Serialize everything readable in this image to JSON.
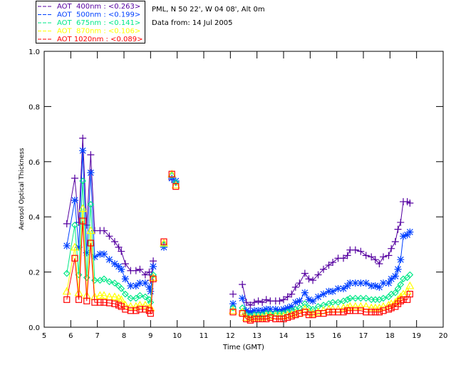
{
  "header": {
    "site": "PML, N 50 22', W 04 08', Alt 0m",
    "date": "Data from: 14 Jul 2005"
  },
  "chart_data": {
    "type": "line",
    "xlabel": "Time (GMT)",
    "ylabel": "Aerosol Optical Thickness",
    "xlim": [
      5,
      20
    ],
    "ylim": [
      0,
      1.0
    ],
    "xticks": [
      "5",
      "6",
      "7",
      "8",
      "9",
      "10",
      "11",
      "12",
      "13",
      "14",
      "15",
      "16",
      "17",
      "18",
      "19",
      "20"
    ],
    "yticks": [
      "0.0",
      "0.2",
      "0.4",
      "0.6",
      "0.8",
      "1.0"
    ],
    "legend_position": "top-left-outside",
    "segments_x": [
      [
        5.85,
        6.15,
        6.3,
        6.45,
        6.6,
        6.75,
        6.9,
        7.1,
        7.25,
        7.45,
        7.65,
        7.8,
        7.9,
        8.05,
        8.25,
        8.45,
        8.6,
        8.8,
        8.95,
        9.0,
        9.1
      ],
      [
        9.5
      ],
      [
        9.8
      ],
      [
        9.95
      ],
      [
        12.1
      ],
      [
        12.45,
        12.6,
        12.75,
        12.9,
        13.05,
        13.2,
        13.35,
        13.5,
        13.7,
        13.85,
        14.0,
        14.15,
        14.3,
        14.45,
        14.6,
        14.8,
        14.95,
        15.1,
        15.3,
        15.5,
        15.7,
        15.85,
        16.05,
        16.25,
        16.4,
        16.5,
        16.7,
        16.9,
        17.1,
        17.3,
        17.45,
        17.6,
        17.75,
        17.95,
        18.05,
        18.2,
        18.3,
        18.4,
        18.5,
        18.65,
        18.75
      ]
    ],
    "series": [
      {
        "name": "AOT  400nm : <0.263>",
        "color": "#5500a0",
        "marker": "plus",
        "segments": [
          [
            0.375,
            0.54,
            0.38,
            0.685,
            0.37,
            0.625,
            0.35,
            0.35,
            0.35,
            0.33,
            0.31,
            0.29,
            0.275,
            0.23,
            0.205,
            0.205,
            0.21,
            0.19,
            0.2,
            0.17,
            0.24
          ],
          [
            0.295
          ],
          [
            0.535
          ],
          [
            0.525
          ],
          [
            0.12
          ],
          [
            0.155,
            0.09,
            0.08,
            0.09,
            0.095,
            0.09,
            0.1,
            0.095,
            0.095,
            0.095,
            0.1,
            0.11,
            0.12,
            0.145,
            0.16,
            0.195,
            0.175,
            0.17,
            0.19,
            0.21,
            0.225,
            0.235,
            0.25,
            0.25,
            0.26,
            0.28,
            0.28,
            0.275,
            0.26,
            0.255,
            0.245,
            0.23,
            0.255,
            0.26,
            0.285,
            0.31,
            0.355,
            0.38,
            0.455,
            0.455,
            0.45
          ]
        ]
      },
      {
        "name": "AOT  500nm : <0.199>",
        "color": "#0040ff",
        "marker": "asterisk",
        "segments": [
          [
            0.295,
            0.46,
            0.29,
            0.64,
            0.27,
            0.56,
            0.255,
            0.265,
            0.265,
            0.245,
            0.23,
            0.22,
            0.21,
            0.175,
            0.15,
            0.15,
            0.16,
            0.16,
            0.145,
            0.13,
            0.22
          ],
          [
            0.29
          ],
          [
            0.54
          ],
          [
            0.53
          ],
          [
            0.085
          ],
          [
            0.105,
            0.06,
            0.055,
            0.06,
            0.06,
            0.06,
            0.065,
            0.065,
            0.065,
            0.06,
            0.065,
            0.07,
            0.075,
            0.09,
            0.095,
            0.125,
            0.1,
            0.095,
            0.11,
            0.12,
            0.13,
            0.13,
            0.14,
            0.14,
            0.15,
            0.16,
            0.16,
            0.16,
            0.16,
            0.15,
            0.15,
            0.145,
            0.16,
            0.16,
            0.175,
            0.185,
            0.21,
            0.245,
            0.33,
            0.335,
            0.345
          ]
        ]
      },
      {
        "name": "AOT  675nm : <0.141>",
        "color": "#00e888",
        "marker": "diamond",
        "segments": [
          [
            0.195,
            0.37,
            0.19,
            0.53,
            0.18,
            0.445,
            0.17,
            0.17,
            0.175,
            0.165,
            0.16,
            0.15,
            0.14,
            0.12,
            0.105,
            0.105,
            0.115,
            0.11,
            0.1,
            0.09,
            0.19
          ],
          [
            0.3
          ],
          [
            0.55
          ],
          [
            0.525
          ],
          [
            0.07
          ],
          [
            0.07,
            0.045,
            0.04,
            0.045,
            0.045,
            0.045,
            0.05,
            0.05,
            0.05,
            0.05,
            0.05,
            0.055,
            0.06,
            0.065,
            0.07,
            0.085,
            0.07,
            0.065,
            0.075,
            0.08,
            0.085,
            0.09,
            0.09,
            0.095,
            0.1,
            0.105,
            0.105,
            0.105,
            0.105,
            0.1,
            0.1,
            0.1,
            0.105,
            0.11,
            0.12,
            0.125,
            0.14,
            0.155,
            0.175,
            0.18,
            0.19
          ]
        ]
      },
      {
        "name": "AOT  870nm : <0.106>",
        "color": "#ffff00",
        "marker": "triangle",
        "segments": [
          [
            0.13,
            0.29,
            0.125,
            0.43,
            0.115,
            0.35,
            0.11,
            0.115,
            0.115,
            0.11,
            0.11,
            0.105,
            0.1,
            0.08,
            0.075,
            0.075,
            0.08,
            0.08,
            0.07,
            0.07,
            0.18
          ],
          [
            0.305
          ],
          [
            0.555
          ],
          [
            0.515
          ],
          [
            0.06
          ],
          [
            0.055,
            0.035,
            0.03,
            0.035,
            0.035,
            0.035,
            0.04,
            0.04,
            0.04,
            0.04,
            0.04,
            0.045,
            0.045,
            0.05,
            0.05,
            0.065,
            0.055,
            0.05,
            0.055,
            0.06,
            0.065,
            0.065,
            0.065,
            0.07,
            0.07,
            0.075,
            0.075,
            0.075,
            0.075,
            0.07,
            0.07,
            0.07,
            0.075,
            0.08,
            0.085,
            0.09,
            0.1,
            0.11,
            0.12,
            0.13,
            0.15
          ]
        ]
      },
      {
        "name": "AOT 1020nm : <0.089>",
        "color": "#ff0000",
        "marker": "square",
        "segments": [
          [
            0.1,
            0.25,
            0.1,
            0.385,
            0.095,
            0.305,
            0.09,
            0.09,
            0.09,
            0.088,
            0.085,
            0.08,
            0.075,
            0.065,
            0.06,
            0.06,
            0.065,
            0.065,
            0.06,
            0.05,
            0.175
          ],
          [
            0.31
          ],
          [
            0.555
          ],
          [
            0.51
          ],
          [
            0.055
          ],
          [
            0.05,
            0.03,
            0.025,
            0.03,
            0.03,
            0.03,
            0.03,
            0.035,
            0.03,
            0.03,
            0.03,
            0.035,
            0.04,
            0.045,
            0.05,
            0.055,
            0.045,
            0.045,
            0.05,
            0.05,
            0.055,
            0.055,
            0.055,
            0.055,
            0.06,
            0.06,
            0.06,
            0.06,
            0.055,
            0.055,
            0.055,
            0.055,
            0.06,
            0.065,
            0.07,
            0.075,
            0.085,
            0.095,
            0.1,
            0.1,
            0.12
          ]
        ]
      }
    ]
  }
}
